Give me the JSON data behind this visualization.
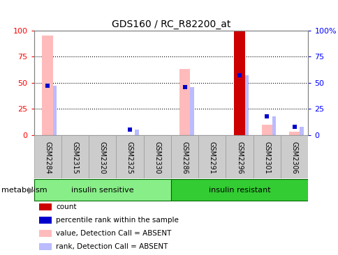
{
  "title": "GDS160 / RC_R82200_at",
  "samples": [
    "GSM2284",
    "GSM2315",
    "GSM2320",
    "GSM2325",
    "GSM2330",
    "GSM2286",
    "GSM2291",
    "GSM2296",
    "GSM2301",
    "GSM2306"
  ],
  "groups": [
    {
      "label": "insulin sensitive",
      "color": "#88ee88",
      "start": 0,
      "end": 5
    },
    {
      "label": "insulin resistant",
      "color": "#33cc33",
      "start": 5,
      "end": 10
    }
  ],
  "group_label": "metabolism",
  "pink_values": [
    95,
    0,
    0,
    0,
    0,
    63,
    0,
    99,
    10,
    3
  ],
  "blue_rank_values": [
    47,
    0,
    0,
    5,
    0,
    46,
    0,
    57,
    18,
    8
  ],
  "red_count_values": [
    0,
    0,
    0,
    0,
    0,
    0,
    0,
    99,
    0,
    0
  ],
  "blue_sq_values": [
    47,
    0,
    0,
    5,
    0,
    46,
    0,
    57,
    18,
    8
  ],
  "ylim": [
    0,
    100
  ],
  "yticks": [
    0,
    25,
    50,
    75,
    100
  ],
  "ytick_labels_left": [
    "0",
    "25",
    "50",
    "75",
    "100"
  ],
  "ytick_labels_right": [
    "0",
    "25",
    "50",
    "75",
    "100%"
  ],
  "dotted_lines": [
    25,
    50,
    75
  ],
  "pink_color": "#ffbbbb",
  "blue_color": "#bbbbff",
  "red_color": "#cc0000",
  "legend_items": [
    {
      "color": "#cc0000",
      "label": "count"
    },
    {
      "color": "#0000cc",
      "label": "percentile rank within the sample"
    },
    {
      "color": "#ffbbbb",
      "label": "value, Detection Call = ABSENT"
    },
    {
      "color": "#bbbbff",
      "label": "rank, Detection Call = ABSENT"
    }
  ],
  "background_color": "#ffffff",
  "plot_bg": "#ffffff",
  "ticklabel_bg": "#cccccc"
}
